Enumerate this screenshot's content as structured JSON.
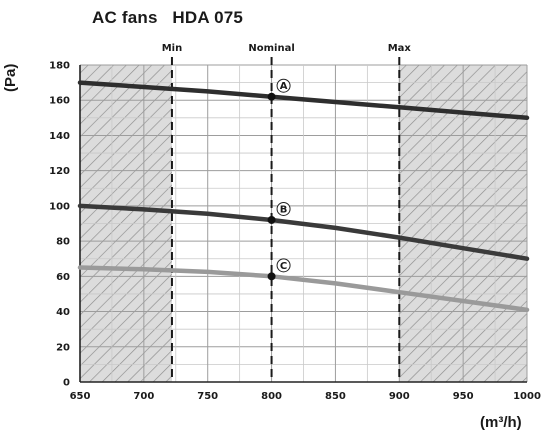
{
  "chart_data": {
    "type": "line",
    "title": "AC fans   HDA 075",
    "ylabel": "(Pa)",
    "xlabel": "(m³/h)",
    "xlim": [
      650,
      1000
    ],
    "ylim": [
      0,
      180
    ],
    "xticks": [
      650,
      700,
      750,
      800,
      850,
      900,
      950,
      1000
    ],
    "yticks": [
      0,
      20,
      40,
      60,
      80,
      100,
      120,
      140,
      160,
      180
    ],
    "grid": true,
    "reference_lines": [
      {
        "label": "Min",
        "x": 722
      },
      {
        "label": "Nominal",
        "x": 800
      },
      {
        "label": "Max",
        "x": 900
      }
    ],
    "hatched_ranges": [
      [
        650,
        722
      ],
      [
        900,
        1000
      ]
    ],
    "series": [
      {
        "name": "A",
        "color": "#2e2e2e",
        "x": [
          650,
          700,
          750,
          800,
          850,
          900,
          950,
          1000
        ],
        "y": [
          170,
          167.5,
          165,
          162,
          159,
          156,
          153,
          150
        ],
        "marker": {
          "x": 800,
          "y": 162
        }
      },
      {
        "name": "B",
        "color": "#3a3a3a",
        "x": [
          650,
          700,
          750,
          800,
          850,
          900,
          950,
          1000
        ],
        "y": [
          100,
          98,
          95.5,
          92,
          87.5,
          82,
          76,
          70
        ],
        "marker": {
          "x": 800,
          "y": 92
        }
      },
      {
        "name": "C",
        "color": "#9a9a9a",
        "x": [
          650,
          700,
          750,
          800,
          850,
          900,
          950,
          1000
        ],
        "y": [
          65,
          64,
          62.5,
          60,
          56,
          51,
          46,
          41
        ],
        "marker": {
          "x": 800,
          "y": 60
        }
      }
    ]
  }
}
